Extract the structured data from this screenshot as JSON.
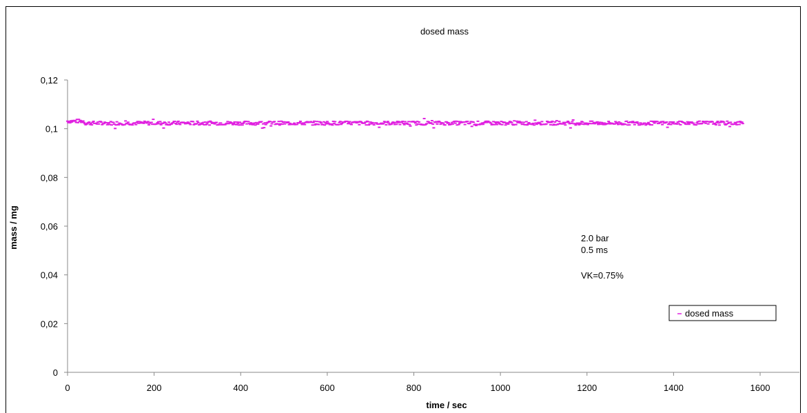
{
  "chart_data": {
    "type": "scatter",
    "title": "dosed mass",
    "xlabel": "time / sec",
    "ylabel": "mass / mg",
    "xlim": [
      0,
      1600
    ],
    "ylim": [
      0,
      0.12
    ],
    "x_ticks": [
      "0",
      "200",
      "400",
      "600",
      "800",
      "1000",
      "1200",
      "1400",
      "1600"
    ],
    "y_ticks": [
      "0",
      "0,02",
      "0,04",
      "0,06",
      "0,08",
      "0,1",
      "0,12"
    ],
    "legend": {
      "position": "right",
      "entries": [
        "dosed mass"
      ]
    },
    "annotations": [
      "2.0 bar",
      "0.5 ms",
      "VK=0.75%"
    ],
    "series": [
      {
        "name": "dosed mass",
        "color": "#e020e0",
        "x_range": [
          0,
          1560
        ],
        "mean": 0.1023,
        "spread": 0.0008,
        "summary": "approximately constant at ~0.102 mg from 0 to ~1560 s"
      }
    ],
    "grid": false
  }
}
